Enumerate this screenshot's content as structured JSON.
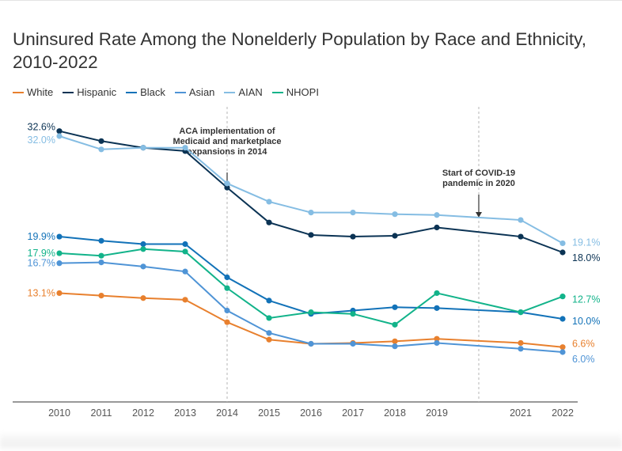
{
  "chart_data": {
    "type": "line",
    "title": "Uninsured Rate Among the Nonelderly Population by Race and Ethnicity, 2010-2022",
    "xlabel": "",
    "ylabel": "",
    "ylim": [
      0,
      36
    ],
    "x": [
      2010,
      2011,
      2012,
      2013,
      2014,
      2015,
      2016,
      2017,
      2018,
      2019,
      2021,
      2022
    ],
    "x_tick_labels": [
      "2010",
      "2011",
      "2012",
      "2013",
      "2014",
      "2015",
      "2016",
      "2017",
      "2018",
      "2019",
      "2021",
      "2022"
    ],
    "series": [
      {
        "name": "White",
        "color": "#e8802e",
        "values": [
          13.1,
          12.8,
          12.5,
          12.3,
          9.6,
          7.5,
          7.0,
          7.1,
          7.3,
          7.6,
          7.1,
          6.6
        ],
        "start_label": "13.1%",
        "end_label": "6.6%"
      },
      {
        "name": "Hispanic",
        "color": "#0b3354",
        "values": [
          32.6,
          31.4,
          30.6,
          30.2,
          25.8,
          21.6,
          20.1,
          19.9,
          20.0,
          21.0,
          19.9,
          18.0
        ],
        "start_label": "32.6%",
        "end_label": "18.0%"
      },
      {
        "name": "Black",
        "color": "#1272b8",
        "values": [
          19.9,
          19.4,
          19.0,
          19.0,
          15.0,
          12.2,
          10.6,
          11.0,
          11.4,
          11.3,
          10.8,
          10.0
        ],
        "start_label": "19.9%",
        "end_label": "10.0%"
      },
      {
        "name": "Asian",
        "color": "#4f94d6",
        "values": [
          16.7,
          16.8,
          16.3,
          15.7,
          11.0,
          8.3,
          7.0,
          7.0,
          6.7,
          7.1,
          6.4,
          6.0
        ],
        "start_label": "16.7%",
        "end_label": "6.0%"
      },
      {
        "name": "AIAN",
        "color": "#85bde3",
        "values": [
          32.0,
          30.4,
          30.6,
          30.6,
          26.3,
          24.1,
          22.8,
          22.8,
          22.6,
          22.5,
          21.9,
          19.1
        ],
        "start_label": "32.0%",
        "end_label": "19.1%"
      },
      {
        "name": "NHOPI",
        "color": "#12b38a",
        "values": [
          17.9,
          17.6,
          18.4,
          18.1,
          13.7,
          10.1,
          10.8,
          10.6,
          9.3,
          13.1,
          10.8,
          12.7
        ],
        "start_label": "17.9%",
        "end_label": "12.7%"
      }
    ],
    "annotations": [
      {
        "x": 2014,
        "lines": [
          "ACA implementation of",
          "Medicaid and marketplace",
          "expansions in 2014"
        ]
      },
      {
        "x": 2020,
        "lines": [
          "Start of COVID-19",
          "pandemic in 2020"
        ]
      }
    ],
    "legend_position": "top-left",
    "grid": false
  }
}
